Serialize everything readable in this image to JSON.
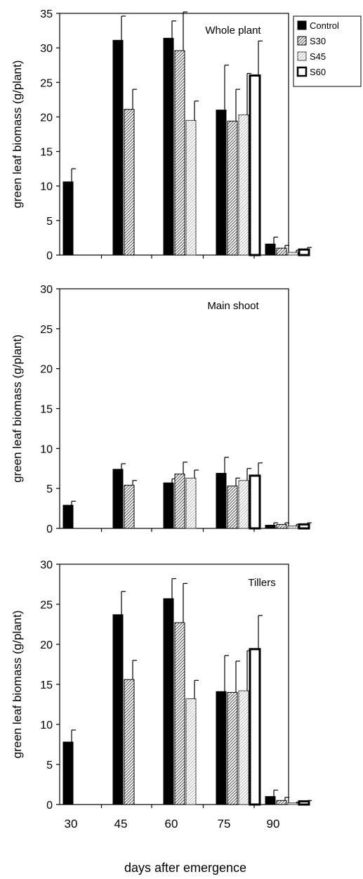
{
  "chart_data": [
    {
      "type": "bar",
      "title": "Whole plant",
      "ylabel": "green leaf biomass (g/plant)",
      "xlabel": "",
      "ylim": [
        0,
        35
      ],
      "yticks": [
        0,
        5,
        10,
        15,
        20,
        25,
        30,
        35
      ],
      "categories": [
        "30",
        "45",
        "60",
        "75",
        "90"
      ],
      "legend": {
        "placement": "top-right, outside plot"
      },
      "series": [
        {
          "name": "Control",
          "values": [
            10.6,
            31.1,
            31.4,
            21.0,
            1.6
          ],
          "errors": [
            1.9,
            3.5,
            2.5,
            6.5,
            1.0
          ]
        },
        {
          "name": "S30",
          "values": [
            null,
            21.1,
            29.6,
            19.4,
            1.0
          ],
          "errors": [
            null,
            2.9,
            5.6,
            4.6,
            0.4
          ]
        },
        {
          "name": "S45",
          "values": [
            null,
            null,
            19.5,
            20.3,
            0.4
          ],
          "errors": [
            null,
            null,
            2.8,
            6.0,
            0.3
          ]
        },
        {
          "name": "S60",
          "values": [
            null,
            null,
            null,
            26.0,
            0.8
          ],
          "errors": [
            null,
            null,
            null,
            5.0,
            0.3
          ]
        }
      ]
    },
    {
      "type": "bar",
      "title": "Main shoot",
      "ylabel": "green leaf biomass (g/plant)",
      "xlabel": "",
      "ylim": [
        0,
        30
      ],
      "yticks": [
        0,
        5,
        10,
        15,
        20,
        25,
        30
      ],
      "categories": [
        "30",
        "45",
        "60",
        "75",
        "90"
      ],
      "series": [
        {
          "name": "Control",
          "values": [
            2.9,
            7.4,
            5.7,
            6.9,
            0.4
          ],
          "errors": [
            0.5,
            0.7,
            0.5,
            2.0,
            0.3
          ]
        },
        {
          "name": "S30",
          "values": [
            null,
            5.4,
            6.8,
            5.3,
            0.5
          ],
          "errors": [
            null,
            0.6,
            1.5,
            1.0,
            0.2
          ]
        },
        {
          "name": "S45",
          "values": [
            null,
            null,
            6.3,
            6.0,
            0.3
          ],
          "errors": [
            null,
            null,
            1.0,
            1.5,
            0.2
          ]
        },
        {
          "name": "S60",
          "values": [
            null,
            null,
            null,
            6.6,
            0.5
          ],
          "errors": [
            null,
            null,
            null,
            1.6,
            0.2
          ]
        }
      ]
    },
    {
      "type": "bar",
      "title": "Tillers",
      "ylabel": "green leaf biomass (g/plant)",
      "xlabel": "days after emergence",
      "ylim": [
        0,
        30
      ],
      "yticks": [
        0,
        5,
        10,
        15,
        20,
        25,
        30
      ],
      "categories": [
        "30",
        "45",
        "60",
        "75",
        "90"
      ],
      "series": [
        {
          "name": "Control",
          "values": [
            7.8,
            23.7,
            25.7,
            14.1,
            1.0
          ],
          "errors": [
            1.5,
            2.9,
            2.5,
            4.5,
            0.8
          ]
        },
        {
          "name": "S30",
          "values": [
            null,
            15.6,
            22.7,
            14.0,
            0.5
          ],
          "errors": [
            null,
            2.4,
            4.9,
            3.9,
            0.4
          ]
        },
        {
          "name": "S45",
          "values": [
            null,
            null,
            13.2,
            14.2,
            0.2
          ],
          "errors": [
            null,
            null,
            2.3,
            5.0,
            0.1
          ]
        },
        {
          "name": "S60",
          "values": [
            null,
            null,
            null,
            19.4,
            0.4
          ],
          "errors": [
            null,
            null,
            null,
            4.2,
            0.1
          ]
        }
      ]
    }
  ],
  "legend_items": [
    {
      "label": "Control",
      "pattern": "solid"
    },
    {
      "label": "S30",
      "pattern": "dense-hatch"
    },
    {
      "label": "S45",
      "pattern": "light-hatch"
    },
    {
      "label": "S60",
      "pattern": "hollow"
    }
  ]
}
